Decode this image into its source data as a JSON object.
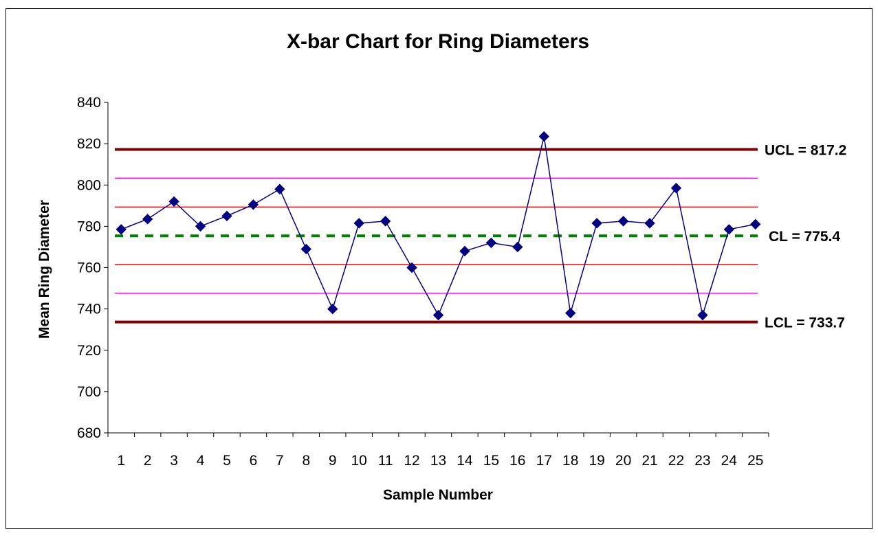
{
  "chart_data": {
    "type": "line",
    "title": "X-bar Chart for Ring Diameters",
    "xlabel": "Sample Number",
    "ylabel": "Mean Ring Diameter",
    "ylim": [
      680,
      840
    ],
    "yticks": [
      680,
      700,
      720,
      740,
      760,
      780,
      800,
      820,
      840
    ],
    "categories": [
      "1",
      "2",
      "3",
      "4",
      "5",
      "6",
      "7",
      "8",
      "9",
      "10",
      "11",
      "12",
      "13",
      "14",
      "15",
      "16",
      "17",
      "18",
      "19",
      "20",
      "21",
      "22",
      "23",
      "24",
      "25"
    ],
    "series": [
      {
        "values": [
          778.5,
          783.5,
          792,
          780,
          785,
          790.5,
          798,
          769,
          740,
          781.5,
          782.5,
          760,
          737,
          768,
          772,
          770,
          823.5,
          738,
          781.5,
          782.5,
          781.5,
          798.5,
          737,
          778.5,
          781
        ],
        "color": "#000080"
      }
    ],
    "control_lines": [
      {
        "value": 817.2,
        "label": "UCL = 817.2",
        "color": "#800000",
        "style": "thick"
      },
      {
        "value": 775.4,
        "label": "CL = 775.4",
        "color": "#008000",
        "style": "dashed"
      },
      {
        "value": 733.7,
        "label": "LCL = 733.7",
        "color": "#800000",
        "style": "thick"
      },
      {
        "value": 803.3,
        "label": "",
        "color": "#ff00ff",
        "style": "thin"
      },
      {
        "value": 789.3,
        "label": "",
        "color": "#ff0000",
        "style": "thin"
      },
      {
        "value": 761.5,
        "label": "",
        "color": "#ff0000",
        "style": "thin"
      },
      {
        "value": 747.6,
        "label": "",
        "color": "#ff00ff",
        "style": "thin"
      }
    ],
    "grid": false,
    "legend": "none"
  }
}
